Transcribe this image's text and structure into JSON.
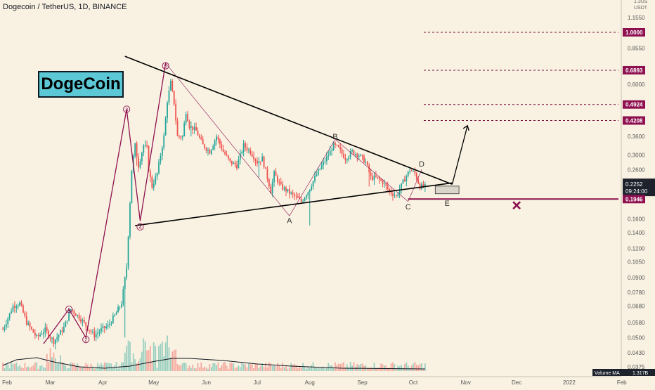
{
  "header": {
    "symbol_text": "Dogecoin / TetherUS, 1D, BINANCE"
  },
  "badge_text": "DogeCoin",
  "axis": {
    "currency_top": "USDT",
    "currency_top_small": "1.3US",
    "volume_label": "Volume MA",
    "volume_value": "1.317B",
    "last_tick": "0.0375"
  },
  "price_tags": {
    "current_price": "0.2252",
    "countdown": "09:24:00"
  },
  "chart_data": {
    "type": "candlestick",
    "title": "",
    "y_scale": "log",
    "ylim": [
      0.036,
      1.3
    ],
    "x_range": [
      "2021-02-01",
      "2022-02-01"
    ],
    "y_ticks": [
      "1.1550",
      "1.0000",
      "0.8550",
      "0.6893",
      "0.6000",
      "0.4924",
      "0.4208",
      "0.3600",
      "0.3000",
      "0.2600",
      "0.2252",
      "0.1946",
      "0.1600",
      "0.1400",
      "0.1200",
      "0.1050",
      "0.0900",
      "0.0780",
      "0.0680",
      "0.0580",
      "0.0500",
      "0.0430",
      "0.0375"
    ],
    "x_ticks": [
      "Feb",
      "Mar",
      "Apr",
      "May",
      "Jun",
      "Jul",
      "Aug",
      "Sep",
      "Oct",
      "Nov",
      "Dec",
      "2022",
      "Feb"
    ],
    "highlighted_levels": [
      {
        "label": "1.0000",
        "value": 1.0
      },
      {
        "label": "0.6893",
        "value": 0.6893
      },
      {
        "label": "0.4924",
        "value": 0.4924
      },
      {
        "label": "0.4208",
        "value": 0.4208
      },
      {
        "label": "0.1946",
        "value": 0.1946
      }
    ],
    "triangle": {
      "upper": [
        [
          "2021-04-14",
          0.79
        ],
        [
          "2021-10-24",
          0.225
        ]
      ],
      "lower": [
        [
          "2021-04-20",
          0.15
        ],
        [
          "2021-10-24",
          0.228
        ]
      ]
    },
    "wave_labels": [
      {
        "text": "1",
        "x": "2021-03-12",
        "y": 0.066
      },
      {
        "text": "2",
        "x": "2021-03-22",
        "y": 0.049
      },
      {
        "text": "3",
        "x": "2021-04-15",
        "y": 0.47
      },
      {
        "text": "4",
        "x": "2021-04-23",
        "y": 0.148
      },
      {
        "text": "5",
        "x": "2021-05-08",
        "y": 0.72
      },
      {
        "text": "A",
        "x": "2021-07-20",
        "y": 0.158
      },
      {
        "text": "B",
        "x": "2021-08-16",
        "y": 0.36
      },
      {
        "text": "C",
        "x": "2021-09-28",
        "y": 0.181
      },
      {
        "text": "D",
        "x": "2021-10-06",
        "y": 0.275
      },
      {
        "text": "E",
        "x": "2021-10-21",
        "y": 0.187
      }
    ],
    "candles": []
  }
}
